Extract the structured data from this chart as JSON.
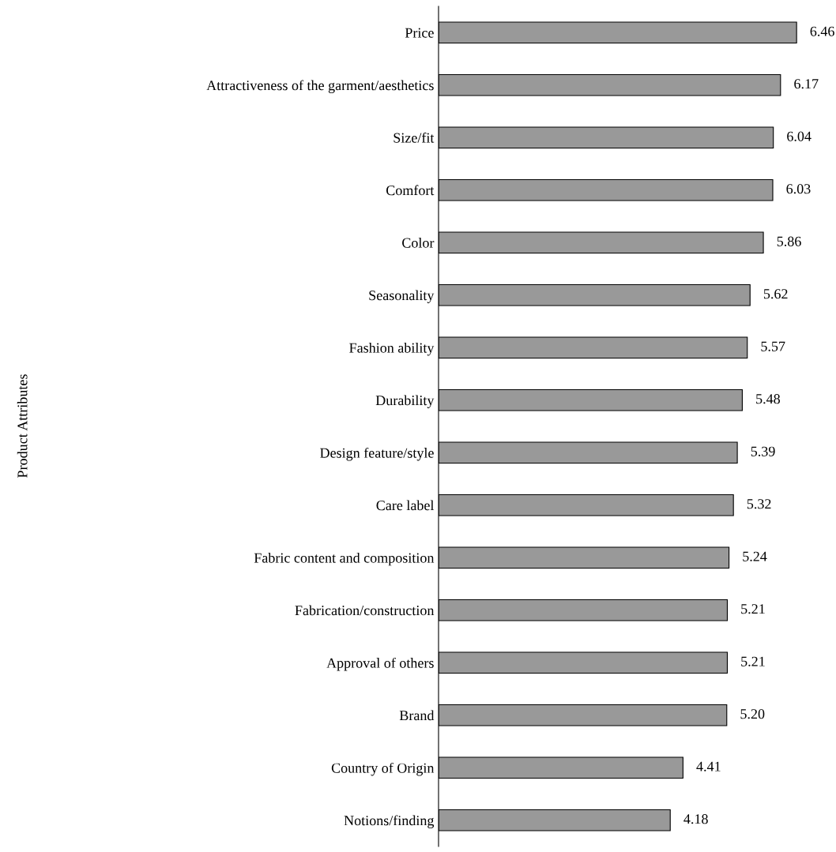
{
  "chart_data": {
    "type": "bar",
    "orientation": "horizontal",
    "annotations": [
      "Product Attributes"
    ],
    "categories": [
      "Price",
      "Attractiveness of the garment/aesthetics",
      "Size/fit",
      "Comfort",
      "Color",
      "Seasonality",
      "Fashion ability",
      "Durability",
      "Design feature/style",
      "Care label",
      "Fabric content and composition",
      "Fabrication/construction",
      "Approval of others",
      "Brand",
      "Country of Origin",
      "Notions/finding"
    ],
    "values": [
      6.46,
      6.17,
      6.04,
      6.03,
      5.86,
      5.62,
      5.57,
      5.48,
      5.39,
      5.32,
      5.24,
      5.21,
      5.21,
      5.2,
      4.41,
      4.18
    ],
    "value_labels": [
      "6.46",
      "6.17",
      "6.04",
      "6.03",
      "5.86",
      "5.62",
      "5.57",
      "5.48",
      "5.39",
      "5.32",
      "5.24",
      "5.21",
      "5.21",
      "5.20",
      "4.41",
      "4.18"
    ],
    "color": "#999999",
    "grid": false,
    "legend": false
  }
}
